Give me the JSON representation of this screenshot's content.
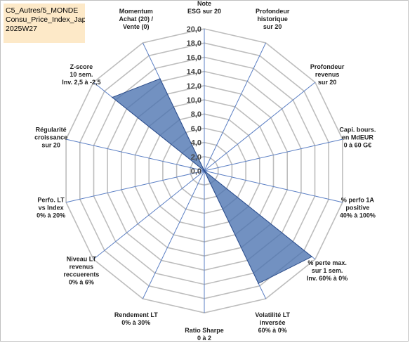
{
  "title_lines": [
    "C5_Autres/5_MONDE",
    "Consu_Price_Index_Japan",
    "2025W27"
  ],
  "chart_data": {
    "type": "radar",
    "r_range": [
      0,
      20
    ],
    "tick_step": 2,
    "tick_labels": [
      "0,0",
      "2,0",
      "4,0",
      "6,0",
      "8,0",
      "10,0",
      "12,0",
      "14,0",
      "16,0",
      "18,0",
      "20,0"
    ],
    "grid": true,
    "fill_color": "#4a72b0",
    "axes": [
      {
        "lines": [
          "Note",
          "ESG sur 20"
        ],
        "value": 0
      },
      {
        "lines": [
          "Profondeur",
          "historique",
          "sur 20"
        ],
        "value": 0
      },
      {
        "lines": [
          "Profondeur",
          "revenus",
          "sur 20"
        ],
        "value": 0
      },
      {
        "lines": [
          "Capi. bours.",
          "en MdEUR",
          "0 à 60 G€"
        ],
        "value": 0
      },
      {
        "lines": [
          "% perfo 1A",
          "positive",
          "40% à 100%"
        ],
        "value": 0
      },
      {
        "lines": [
          "% perte max.",
          "sur 1 sem.",
          "Inv. 60% à 0%"
        ],
        "value": 19.4
      },
      {
        "lines": [
          "Volatilité LT",
          "inversée",
          "60% à 0%"
        ],
        "value": 17.6
      },
      {
        "lines": [
          "Ratio Sharpe",
          "0 à 2"
        ],
        "value": 0
      },
      {
        "lines": [
          "Rendement LT",
          "0% à 30%"
        ],
        "value": 0
      },
      {
        "lines": [
          "Niveau LT",
          "revenus",
          "reccuerents",
          "0% à 6%"
        ],
        "value": 0
      },
      {
        "lines": [
          "Perfo. LT",
          "vs Index",
          "0% à 20%"
        ],
        "value": 0
      },
      {
        "lines": [
          "Régularité",
          "croissance",
          "sur 20"
        ],
        "value": 0
      },
      {
        "lines": [
          "Z-score",
          "10 sem.",
          "Inv. 2,5 à -2,5"
        ],
        "value": 16.6
      },
      {
        "lines": [
          "Momentum",
          "Achat (20) /",
          "Vente (0)"
        ],
        "value": 14.4
      }
    ]
  }
}
